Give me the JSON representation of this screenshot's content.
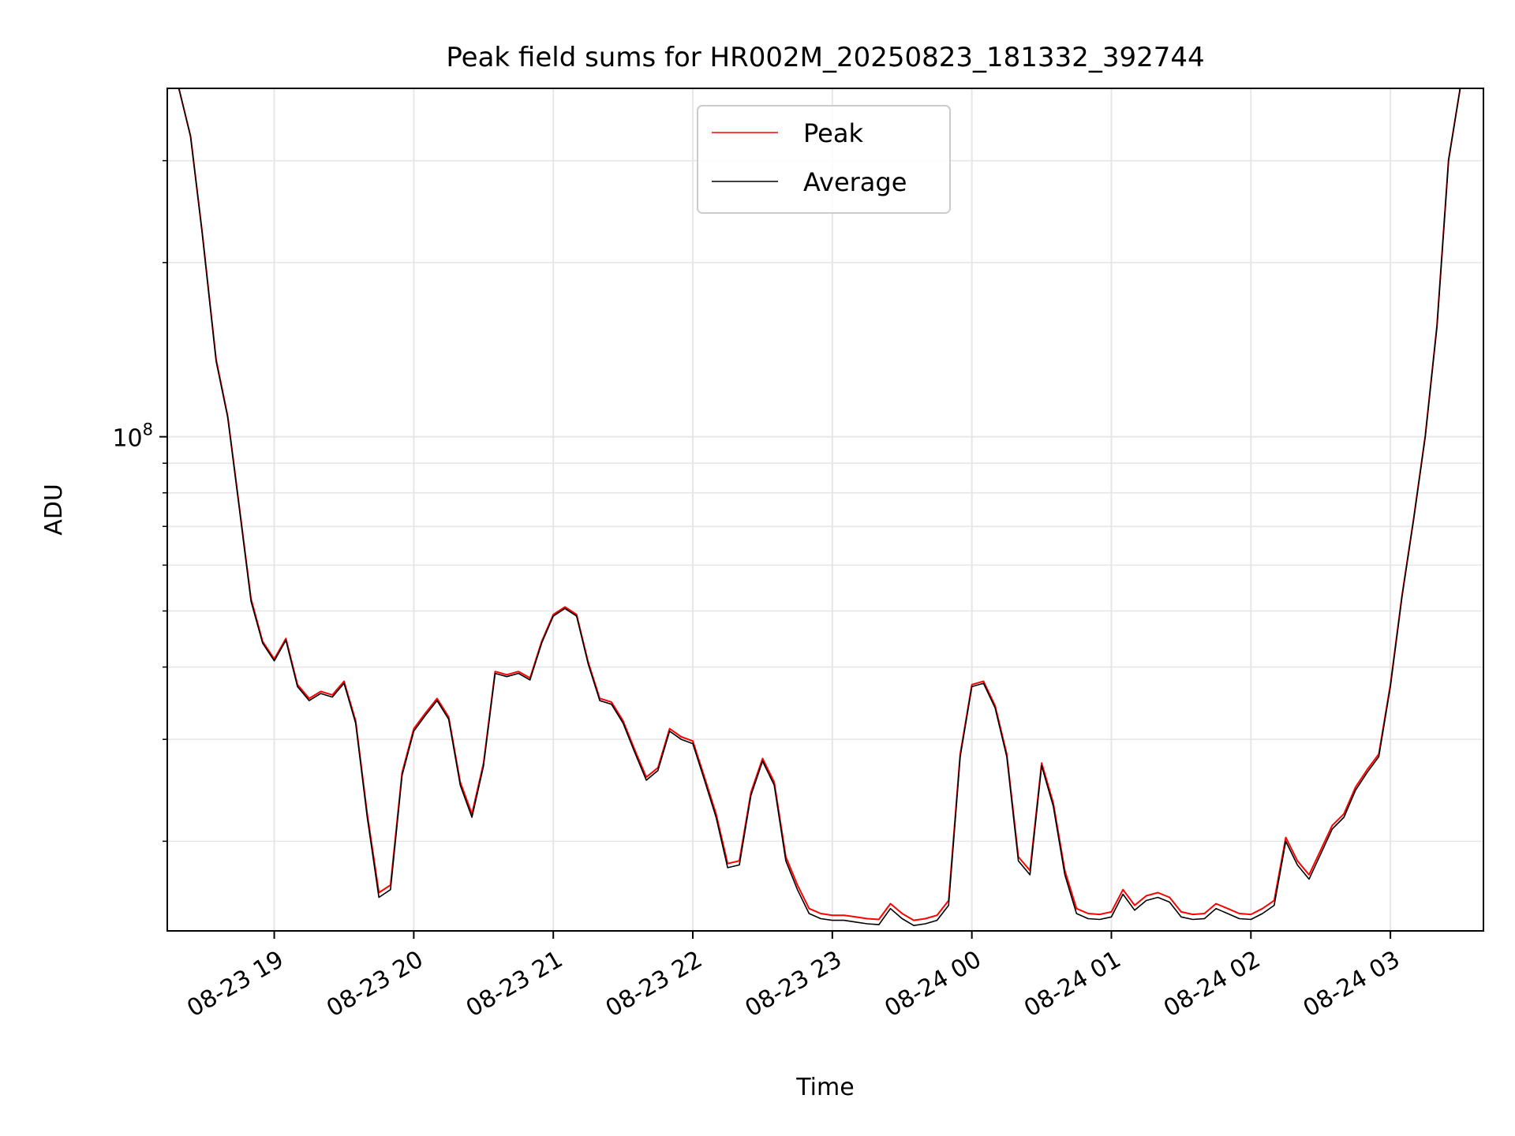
{
  "chart_data": {
    "type": "line",
    "title": "Peak field sums for HR002M_20250823_181332_392744",
    "xlabel": "Time",
    "ylabel": "ADU",
    "y_scale": "log",
    "ylim": [
      14000000,
      400000000
    ],
    "xlim": [
      "2025-08-23 18:14",
      "2025-08-24 03:40"
    ],
    "x_ticks": [
      "2025-08-23 19:00",
      "2025-08-23 20:00",
      "2025-08-23 21:00",
      "2025-08-23 22:00",
      "2025-08-23 23:00",
      "2025-08-24 00:00",
      "2025-08-24 01:00",
      "2025-08-24 02:00",
      "2025-08-24 03:00"
    ],
    "x_tick_labels": [
      "08-23 19",
      "08-23 20",
      "08-23 21",
      "08-23 22",
      "08-23 23",
      "08-24 00",
      "08-24 01",
      "08-24 02",
      "08-24 03"
    ],
    "y_ticks": [
      100000000
    ],
    "y_tick_labels": [
      {
        "base": "10",
        "exp": "8"
      }
    ],
    "grid": true,
    "legend_position": "top-center",
    "series": [
      {
        "name": "Peak",
        "color": "#ff0000"
      },
      {
        "name": "Average",
        "color": "#000000"
      }
    ],
    "x": [
      "2025-08-23 18:14",
      "2025-08-23 18:19",
      "2025-08-23 18:24",
      "2025-08-23 18:29",
      "2025-08-23 18:35",
      "2025-08-23 18:40",
      "2025-08-23 18:45",
      "2025-08-23 18:50",
      "2025-08-23 18:55",
      "2025-08-23 19:00",
      "2025-08-23 19:05",
      "2025-08-23 19:10",
      "2025-08-23 19:15",
      "2025-08-23 19:20",
      "2025-08-23 19:25",
      "2025-08-23 19:30",
      "2025-08-23 19:35",
      "2025-08-23 19:40",
      "2025-08-23 19:45",
      "2025-08-23 19:50",
      "2025-08-23 19:55",
      "2025-08-23 20:00",
      "2025-08-23 20:05",
      "2025-08-23 20:10",
      "2025-08-23 20:15",
      "2025-08-23 20:20",
      "2025-08-23 20:25",
      "2025-08-23 20:30",
      "2025-08-23 20:35",
      "2025-08-23 20:40",
      "2025-08-23 20:45",
      "2025-08-23 20:50",
      "2025-08-23 20:55",
      "2025-08-23 21:00",
      "2025-08-23 21:05",
      "2025-08-23 21:10",
      "2025-08-23 21:15",
      "2025-08-23 21:20",
      "2025-08-23 21:25",
      "2025-08-23 21:30",
      "2025-08-23 21:35",
      "2025-08-23 21:40",
      "2025-08-23 21:45",
      "2025-08-23 21:50",
      "2025-08-23 21:55",
      "2025-08-23 22:00",
      "2025-08-23 22:05",
      "2025-08-23 22:10",
      "2025-08-23 22:15",
      "2025-08-23 22:20",
      "2025-08-23 22:25",
      "2025-08-23 22:30",
      "2025-08-23 22:35",
      "2025-08-23 22:40",
      "2025-08-23 22:45",
      "2025-08-23 22:50",
      "2025-08-23 22:55",
      "2025-08-23 23:00",
      "2025-08-23 23:05",
      "2025-08-23 23:10",
      "2025-08-23 23:15",
      "2025-08-23 23:20",
      "2025-08-23 23:25",
      "2025-08-23 23:30",
      "2025-08-23 23:35",
      "2025-08-23 23:40",
      "2025-08-23 23:45",
      "2025-08-23 23:50",
      "2025-08-23 23:55",
      "2025-08-24 00:00",
      "2025-08-24 00:05",
      "2025-08-24 00:10",
      "2025-08-24 00:15",
      "2025-08-24 00:20",
      "2025-08-24 00:25",
      "2025-08-24 00:30",
      "2025-08-24 00:35",
      "2025-08-24 00:40",
      "2025-08-24 00:45",
      "2025-08-24 00:50",
      "2025-08-24 00:55",
      "2025-08-24 01:00",
      "2025-08-24 01:05",
      "2025-08-24 01:10",
      "2025-08-24 01:15",
      "2025-08-24 01:20",
      "2025-08-24 01:25",
      "2025-08-24 01:30",
      "2025-08-24 01:35",
      "2025-08-24 01:40",
      "2025-08-24 01:45",
      "2025-08-24 01:50",
      "2025-08-24 01:55",
      "2025-08-24 02:00",
      "2025-08-24 02:05",
      "2025-08-24 02:10",
      "2025-08-24 02:15",
      "2025-08-24 02:20",
      "2025-08-24 02:25",
      "2025-08-24 02:30",
      "2025-08-24 02:35",
      "2025-08-24 02:40",
      "2025-08-24 02:45",
      "2025-08-24 02:50",
      "2025-08-24 02:55",
      "2025-08-24 03:00",
      "2025-08-24 03:05",
      "2025-08-24 03:10",
      "2025-08-24 03:15",
      "2025-08-24 03:20",
      "2025-08-24 03:25",
      "2025-08-24 03:30",
      "2025-08-24 03:35",
      "2025-08-24 03:40"
    ],
    "average_values": [
      400000000,
      400000000,
      330000000,
      225000000,
      135000000,
      108000000,
      75000000,
      52000000,
      44000000,
      41000000,
      44500000,
      37000000,
      35000000,
      36000000,
      35500000,
      37500000,
      32000000,
      22000000,
      16000000,
      16500000,
      26000000,
      31000000,
      33000000,
      35000000,
      32500000,
      25000000,
      22000000,
      27000000,
      39000000,
      38500000,
      39000000,
      38000000,
      44000000,
      49000000,
      50500000,
      49000000,
      40500000,
      35000000,
      34500000,
      32000000,
      28500000,
      25500000,
      26500000,
      31000000,
      30000000,
      29500000,
      25500000,
      22000000,
      18000000,
      18200000,
      24000000,
      27500000,
      25000000,
      18500000,
      16500000,
      15000000,
      14700000,
      14600000,
      14600000,
      14500000,
      14400000,
      14350000,
      15300000,
      14700000,
      14300000,
      14400000,
      14600000,
      15500000,
      28000000,
      37000000,
      37500000,
      34000000,
      28000000,
      18500000,
      17500000,
      27000000,
      23000000,
      17500000,
      15000000,
      14700000,
      14650000,
      14800000,
      16200000,
      15200000,
      15800000,
      16000000,
      15700000,
      14800000,
      14650000,
      14700000,
      15300000,
      15000000,
      14700000,
      14650000,
      15000000,
      15500000,
      20000000,
      18200000,
      17200000,
      19000000,
      21000000,
      22000000,
      24500000,
      26300000,
      28000000,
      37000000,
      53000000,
      72000000,
      100000000,
      155000000,
      300000000,
      400000000,
      400000000,
      400000000
    ],
    "peak_values": [
      400000000,
      400000000,
      331000000,
      226000000,
      136000000,
      108500000,
      75500000,
      52500000,
      44300000,
      41300000,
      44800000,
      37300000,
      35300000,
      36300000,
      35800000,
      37800000,
      32300000,
      22300000,
      16300000,
      16800000,
      26300000,
      31300000,
      33300000,
      35300000,
      32800000,
      25300000,
      22300000,
      27300000,
      39300000,
      38800000,
      39300000,
      38300000,
      44300000,
      49300000,
      50800000,
      49300000,
      40800000,
      35300000,
      34800000,
      32300000,
      28800000,
      25800000,
      26800000,
      31300000,
      30300000,
      29800000,
      25800000,
      22300000,
      18300000,
      18500000,
      24300000,
      27800000,
      25300000,
      18800000,
      16800000,
      15300000,
      15000000,
      14900000,
      14900000,
      14800000,
      14700000,
      14650000,
      15600000,
      15000000,
      14600000,
      14700000,
      14900000,
      15800000,
      28300000,
      37300000,
      37800000,
      34300000,
      28300000,
      18800000,
      17800000,
      27300000,
      23300000,
      17800000,
      15300000,
      15000000,
      14950000,
      15100000,
      16500000,
      15500000,
      16100000,
      16300000,
      16000000,
      15100000,
      14950000,
      15000000,
      15600000,
      15300000,
      15000000,
      14950000,
      15300000,
      15800000,
      20300000,
      18500000,
      17500000,
      19300000,
      21300000,
      22300000,
      24800000,
      26600000,
      28300000,
      37300000,
      53300000,
      72300000,
      100500000,
      155500000,
      301000000,
      400000000,
      400000000,
      400000000
    ]
  }
}
